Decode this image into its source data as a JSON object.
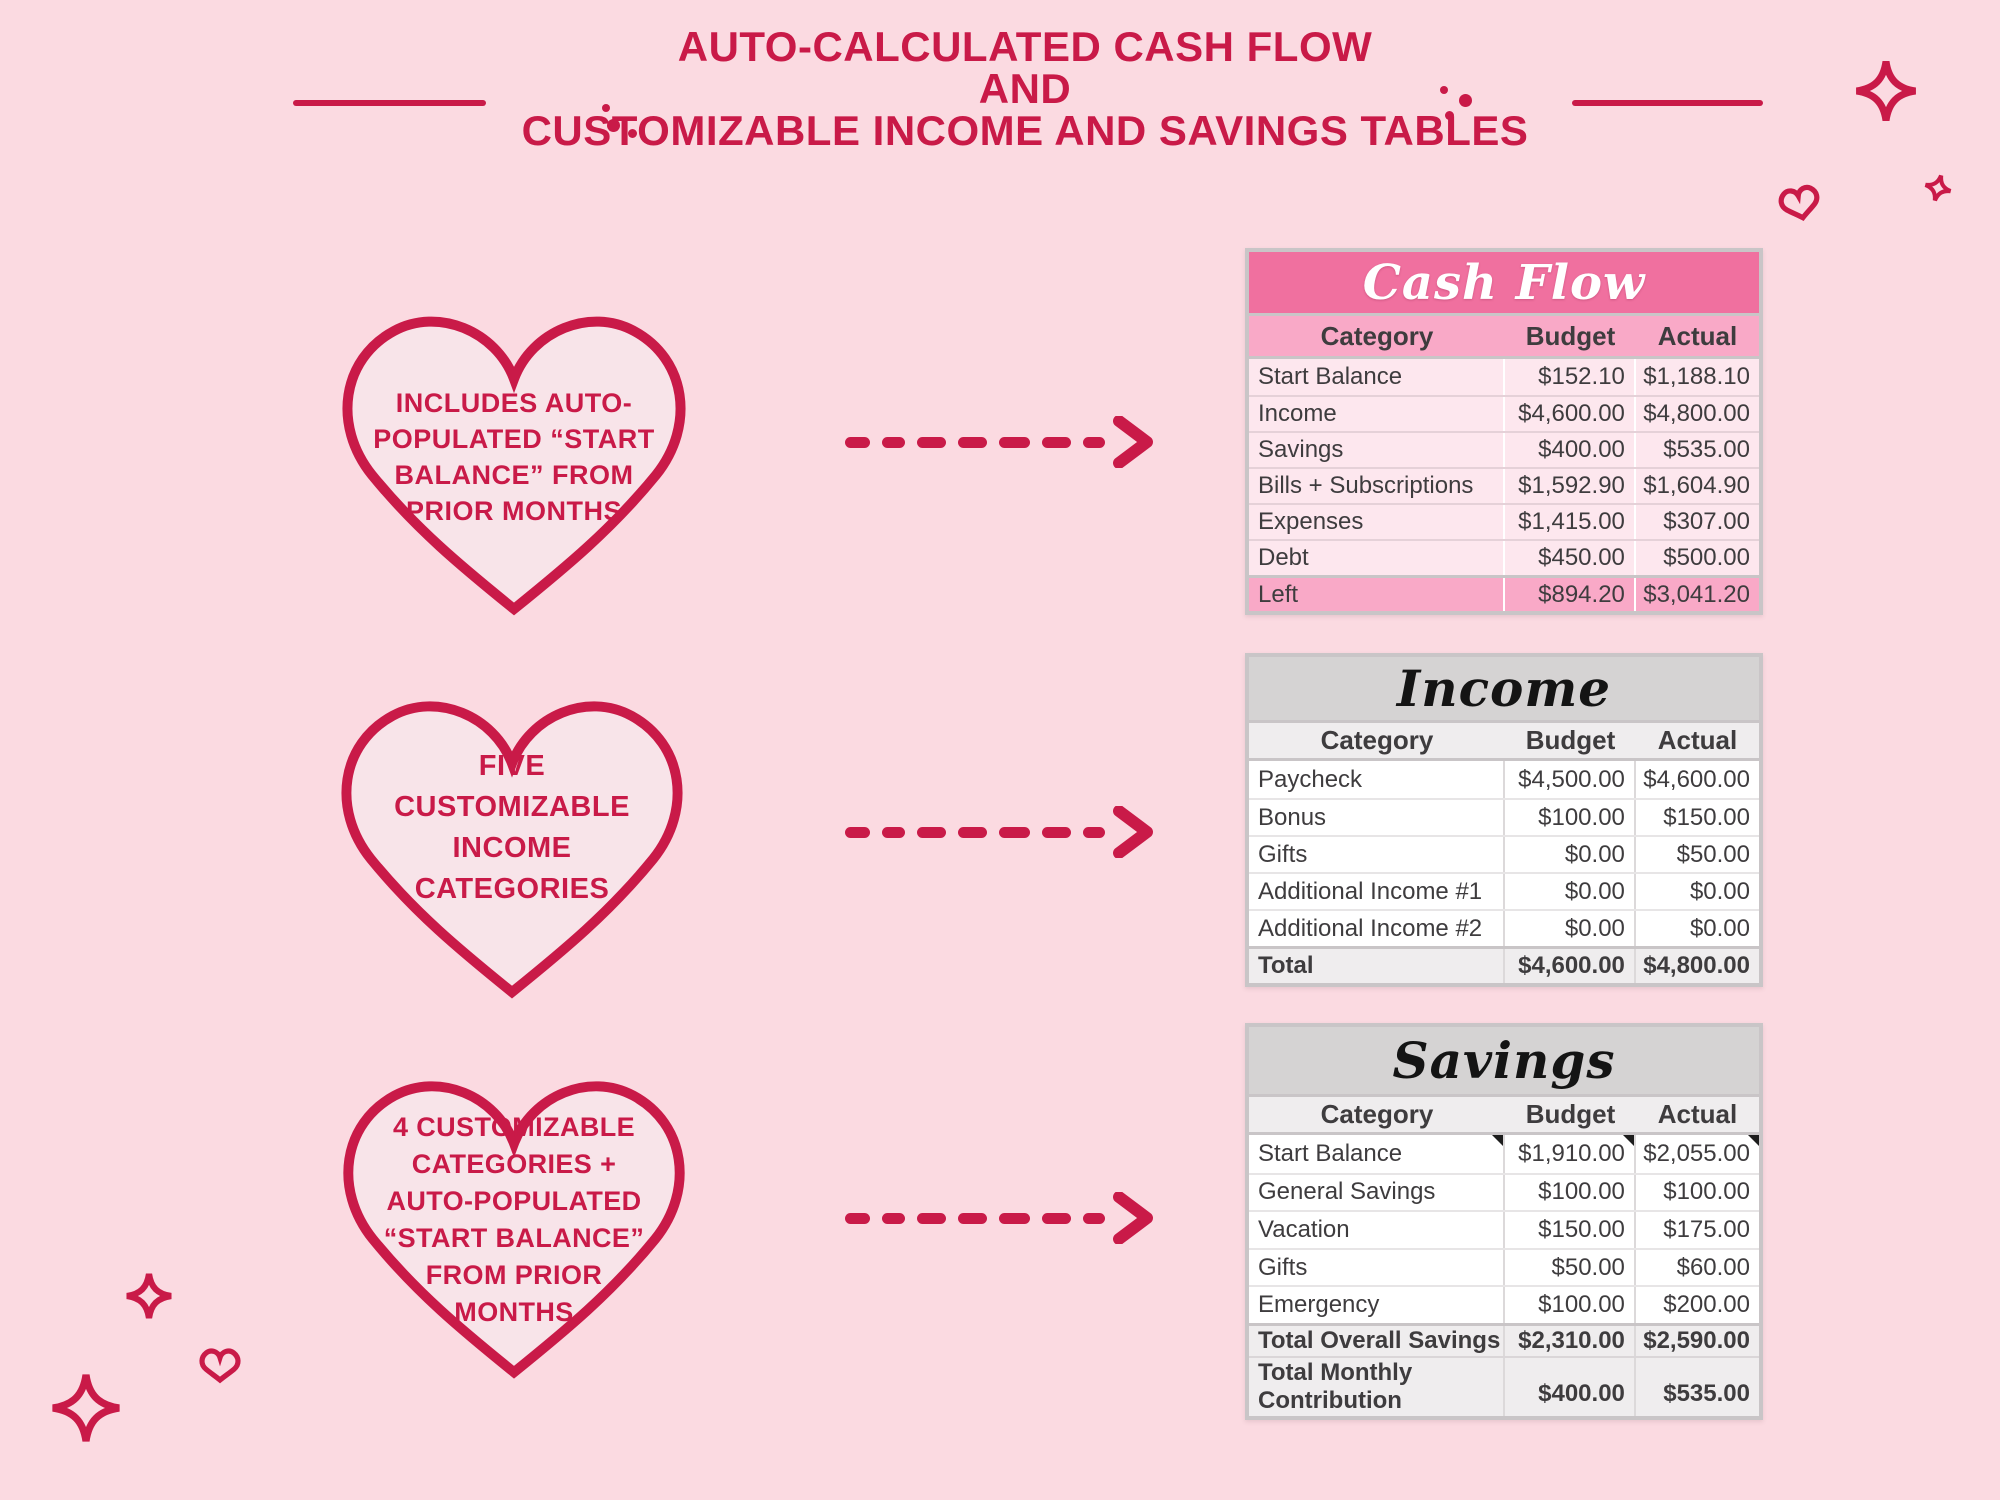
{
  "colors": {
    "background": "#fbdae1",
    "accent": "#c91a48",
    "heart_fill": "#f8e4e9",
    "cashflow_band": "#f0709f",
    "cashflow_header_row": "#f9a9c7",
    "cashflow_data_row": "#fde7ee",
    "grey_band": "#d5d3d3",
    "grey_header_row": "#efedee",
    "white_data_row": "#ffffff"
  },
  "title": {
    "line1": "AUTO-CALCULATED CASH FLOW",
    "line2": "AND",
    "line3": "CUSTOMIZABLE INCOME AND SAVINGS TABLES"
  },
  "hearts": [
    {
      "text": "INCLUDES AUTO-\nPOPULATED “START\nBALANCE” FROM\nPRIOR MONTHS"
    },
    {
      "text": "FIVE\nCUSTOMIZABLE\nINCOME\nCATEGORIES"
    },
    {
      "text": "4 CUSTOMIZABLE\nCATEGORIES +\nAUTO-POPULATED\n“START BALANCE”\nFROM PRIOR\nMONTHS"
    }
  ],
  "tables": [
    {
      "title": "Cash Flow",
      "columns": [
        "Category",
        "Budget",
        "Actual"
      ],
      "rows": [
        [
          "Start Balance",
          "$152.10",
          "$1,188.10"
        ],
        [
          "Income",
          "$4,600.00",
          "$4,800.00"
        ],
        [
          "Savings",
          "$400.00",
          "$535.00"
        ],
        [
          "Bills + Subscriptions",
          "$1,592.90",
          "$1,604.90"
        ],
        [
          "Expenses",
          "$1,415.00",
          "$307.00"
        ],
        [
          "Debt",
          "$450.00",
          "$500.00"
        ]
      ],
      "total_rows": [
        [
          "Left",
          "$894.20",
          "$3,041.20"
        ]
      ]
    },
    {
      "title": "Income",
      "columns": [
        "Category",
        "Budget",
        "Actual"
      ],
      "rows": [
        [
          "Paycheck",
          "$4,500.00",
          "$4,600.00"
        ],
        [
          "Bonus",
          "$100.00",
          "$150.00"
        ],
        [
          "Gifts",
          "$0.00",
          "$50.00"
        ],
        [
          "Additional Income #1",
          "$0.00",
          "$0.00"
        ],
        [
          "Additional Income #2",
          "$0.00",
          "$0.00"
        ]
      ],
      "total_rows": [
        [
          "Total",
          "$4,600.00",
          "$4,800.00"
        ]
      ]
    },
    {
      "title": "Savings",
      "columns": [
        "Category",
        "Budget",
        "Actual"
      ],
      "marker_row": 0,
      "rows": [
        [
          "Start Balance",
          "$1,910.00",
          "$2,055.00"
        ],
        [
          "General Savings",
          "$100.00",
          "$100.00"
        ],
        [
          "Vacation",
          "$150.00",
          "$175.00"
        ],
        [
          "Gifts",
          "$50.00",
          "$60.00"
        ],
        [
          "Emergency",
          "$100.00",
          "$200.00"
        ]
      ],
      "total_rows": [
        [
          "Total Overall Savings",
          "$2,310.00",
          "$2,590.00"
        ],
        [
          "Total Monthly Contribution",
          "$400.00",
          "$535.00"
        ]
      ]
    }
  ]
}
